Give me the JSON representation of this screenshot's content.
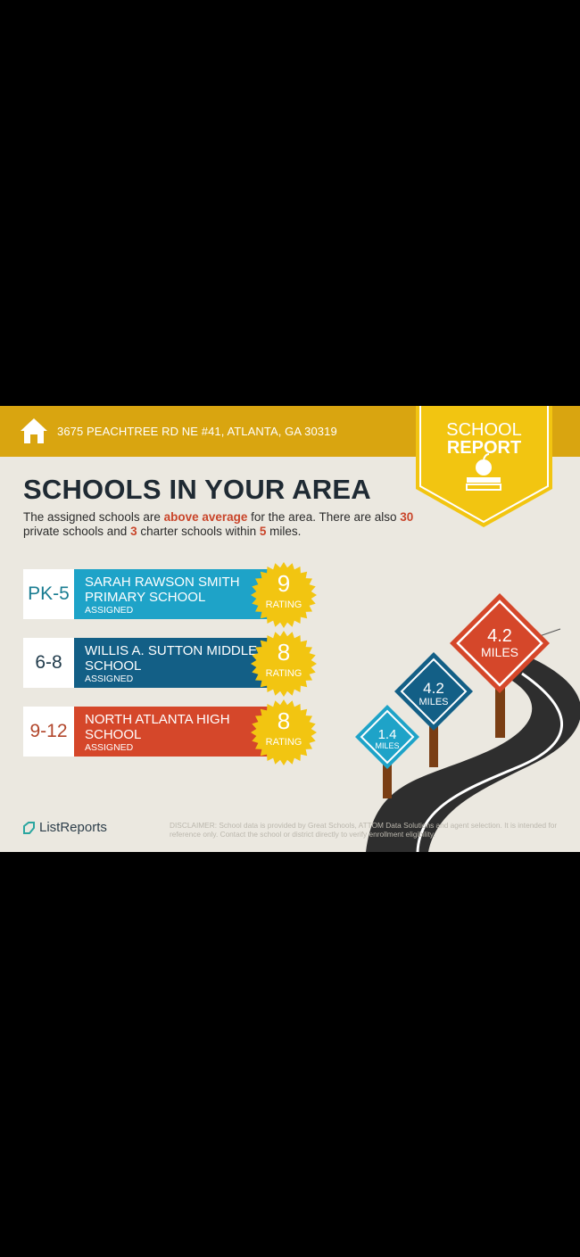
{
  "header": {
    "address": "3675 PEACHTREE RD NE #41, ATLANTA, GA 30319",
    "icon": "home-icon"
  },
  "badge": {
    "line1": "SCHOOL",
    "line2": "REPORT",
    "icon": "apple-on-book-icon"
  },
  "title": "SCHOOLS IN YOUR AREA",
  "intro": {
    "p1": "The assigned schools are ",
    "highlight": "above average",
    "p2": " for the area. There are also ",
    "private_count": "30",
    "p3": " private schools and ",
    "charter_count": "3",
    "p4": " charter schools within ",
    "miles": "5",
    "p5": " miles."
  },
  "schools": [
    {
      "grades": "PK-5",
      "name": "SARAH RAWSON SMITH PRIMARY SCHOOL",
      "status": "ASSIGNED",
      "rating": "9",
      "rating_label": "RATING",
      "color": "#1ea3c8",
      "grade_color": "#1a7d92"
    },
    {
      "grades": "6-8",
      "name": "WILLIS A. SUTTON MIDDLE SCHOOL",
      "status": "ASSIGNED",
      "rating": "8",
      "rating_label": "RATING",
      "color": "#135f86",
      "grade_color": "#1f3a4a"
    },
    {
      "grades": "9-12",
      "name": "NORTH ATLANTA HIGH SCHOOL",
      "status": "ASSIGNED",
      "rating": "8",
      "rating_label": "RATING",
      "color": "#d5472a",
      "grade_color": "#b2472c"
    }
  ],
  "signs": [
    {
      "distance": "1.4",
      "unit": "MILES",
      "color": "#1ea3c8"
    },
    {
      "distance": "4.2",
      "unit": "MILES",
      "color": "#135f86"
    },
    {
      "distance": "4.2",
      "unit": "MILES",
      "color": "#d5472a"
    }
  ],
  "footer": {
    "logo": "ListReports",
    "disclaimer_label": "DISCLAIMER:",
    "disclaimer": " School data is provided by Great Schools, ATTOM Data Solutions and agent selection. It is intended for reference only. Contact the school or district directly to verify enrollment eligibility."
  },
  "colors": {
    "header": "#d9a510",
    "badge": "#f2c511",
    "background": "#ebe8e0",
    "seal": "#f2c511"
  }
}
